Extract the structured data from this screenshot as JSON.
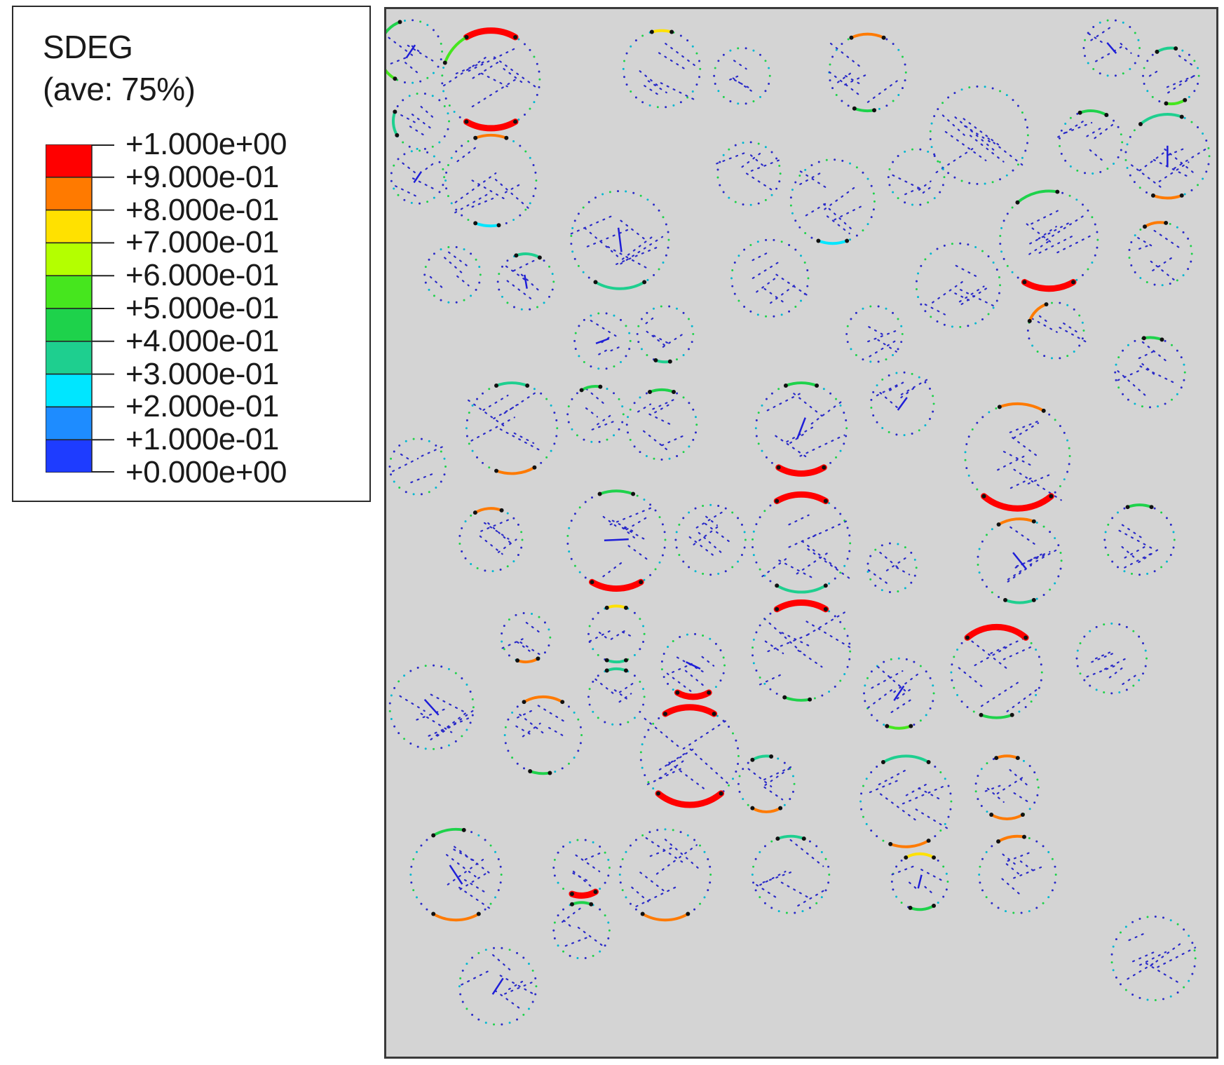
{
  "legend": {
    "variable": "SDEG",
    "averaging": "(ave: 75%)",
    "tick_labels": [
      "+1.000e+00",
      "+9.000e-01",
      "+8.000e-01",
      "+7.000e-01",
      "+6.000e-01",
      "+5.000e-01",
      "+4.000e-01",
      "+3.000e-01",
      "+2.000e-01",
      "+1.000e-01",
      "+0.000e+00"
    ],
    "band_colors": [
      "#ff0000",
      "#ff7a00",
      "#ffe100",
      "#b4ff00",
      "#46e61e",
      "#1ed24b",
      "#1ecf8f",
      "#00e6ff",
      "#1e8cff",
      "#1e3cff"
    ]
  },
  "domain": {
    "background": "#d4d4d4",
    "element_color": "#2a2ac8"
  }
}
